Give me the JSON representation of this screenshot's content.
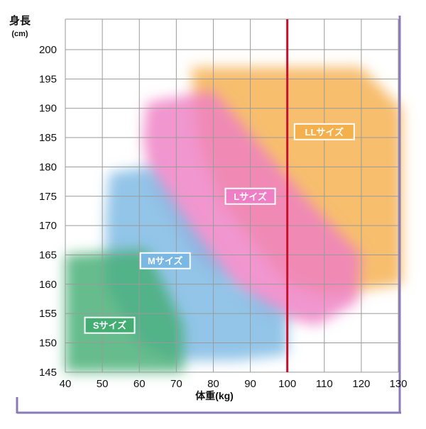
{
  "chart_data": {
    "type": "area",
    "title": "",
    "ylabel": "身長",
    "ylabel_unit": "(cm)",
    "xlabel": "体重(kg)",
    "xlim": [
      40,
      130
    ],
    "ylim": [
      145,
      200
    ],
    "x_ticks": [
      40,
      50,
      60,
      70,
      80,
      90,
      100,
      110,
      120,
      130
    ],
    "y_ticks": [
      145,
      150,
      155,
      160,
      165,
      170,
      175,
      180,
      185,
      190,
      195,
      200
    ],
    "grid": true,
    "reference_line": {
      "x": 100,
      "color": "#c8102e"
    },
    "frame_color": "#8a7ab8",
    "series": [
      {
        "name": "LLサイズ",
        "color": "#f5b04e",
        "region": [
          [
            74,
            197
          ],
          [
            120,
            197
          ],
          [
            131,
            190
          ],
          [
            131,
            160
          ],
          [
            110,
            158
          ],
          [
            100,
            160
          ],
          [
            82,
            174
          ],
          [
            76,
            184
          ]
        ],
        "label_at": [
          110,
          186
        ]
      },
      {
        "name": "Lサイズ",
        "color": "#ee7fc4",
        "region": [
          [
            62,
            191
          ],
          [
            80,
            193
          ],
          [
            106,
            174
          ],
          [
            120,
            165
          ],
          [
            119,
            157
          ],
          [
            108,
            153
          ],
          [
            94,
            155
          ],
          [
            76,
            164
          ],
          [
            63,
            177
          ],
          [
            61,
            185
          ]
        ],
        "label_at": [
          90,
          175
        ]
      },
      {
        "name": "Mサイズ",
        "color": "#7ab8e3",
        "region": [
          [
            52,
            179
          ],
          [
            63,
            180
          ],
          [
            74,
            170
          ],
          [
            86,
            160
          ],
          [
            100,
            155
          ],
          [
            100,
            148
          ],
          [
            86,
            147
          ],
          [
            70,
            147
          ],
          [
            60,
            150
          ],
          [
            51,
            160
          ],
          [
            51,
            172
          ]
        ],
        "label_at": [
          67,
          164
        ]
      },
      {
        "name": "Sサイズ",
        "color": "#44ad74",
        "region": [
          [
            40,
            165
          ],
          [
            62,
            166
          ],
          [
            72,
            153
          ],
          [
            72,
            145
          ],
          [
            40,
            145
          ]
        ],
        "label_at": [
          52,
          153
        ]
      }
    ]
  }
}
